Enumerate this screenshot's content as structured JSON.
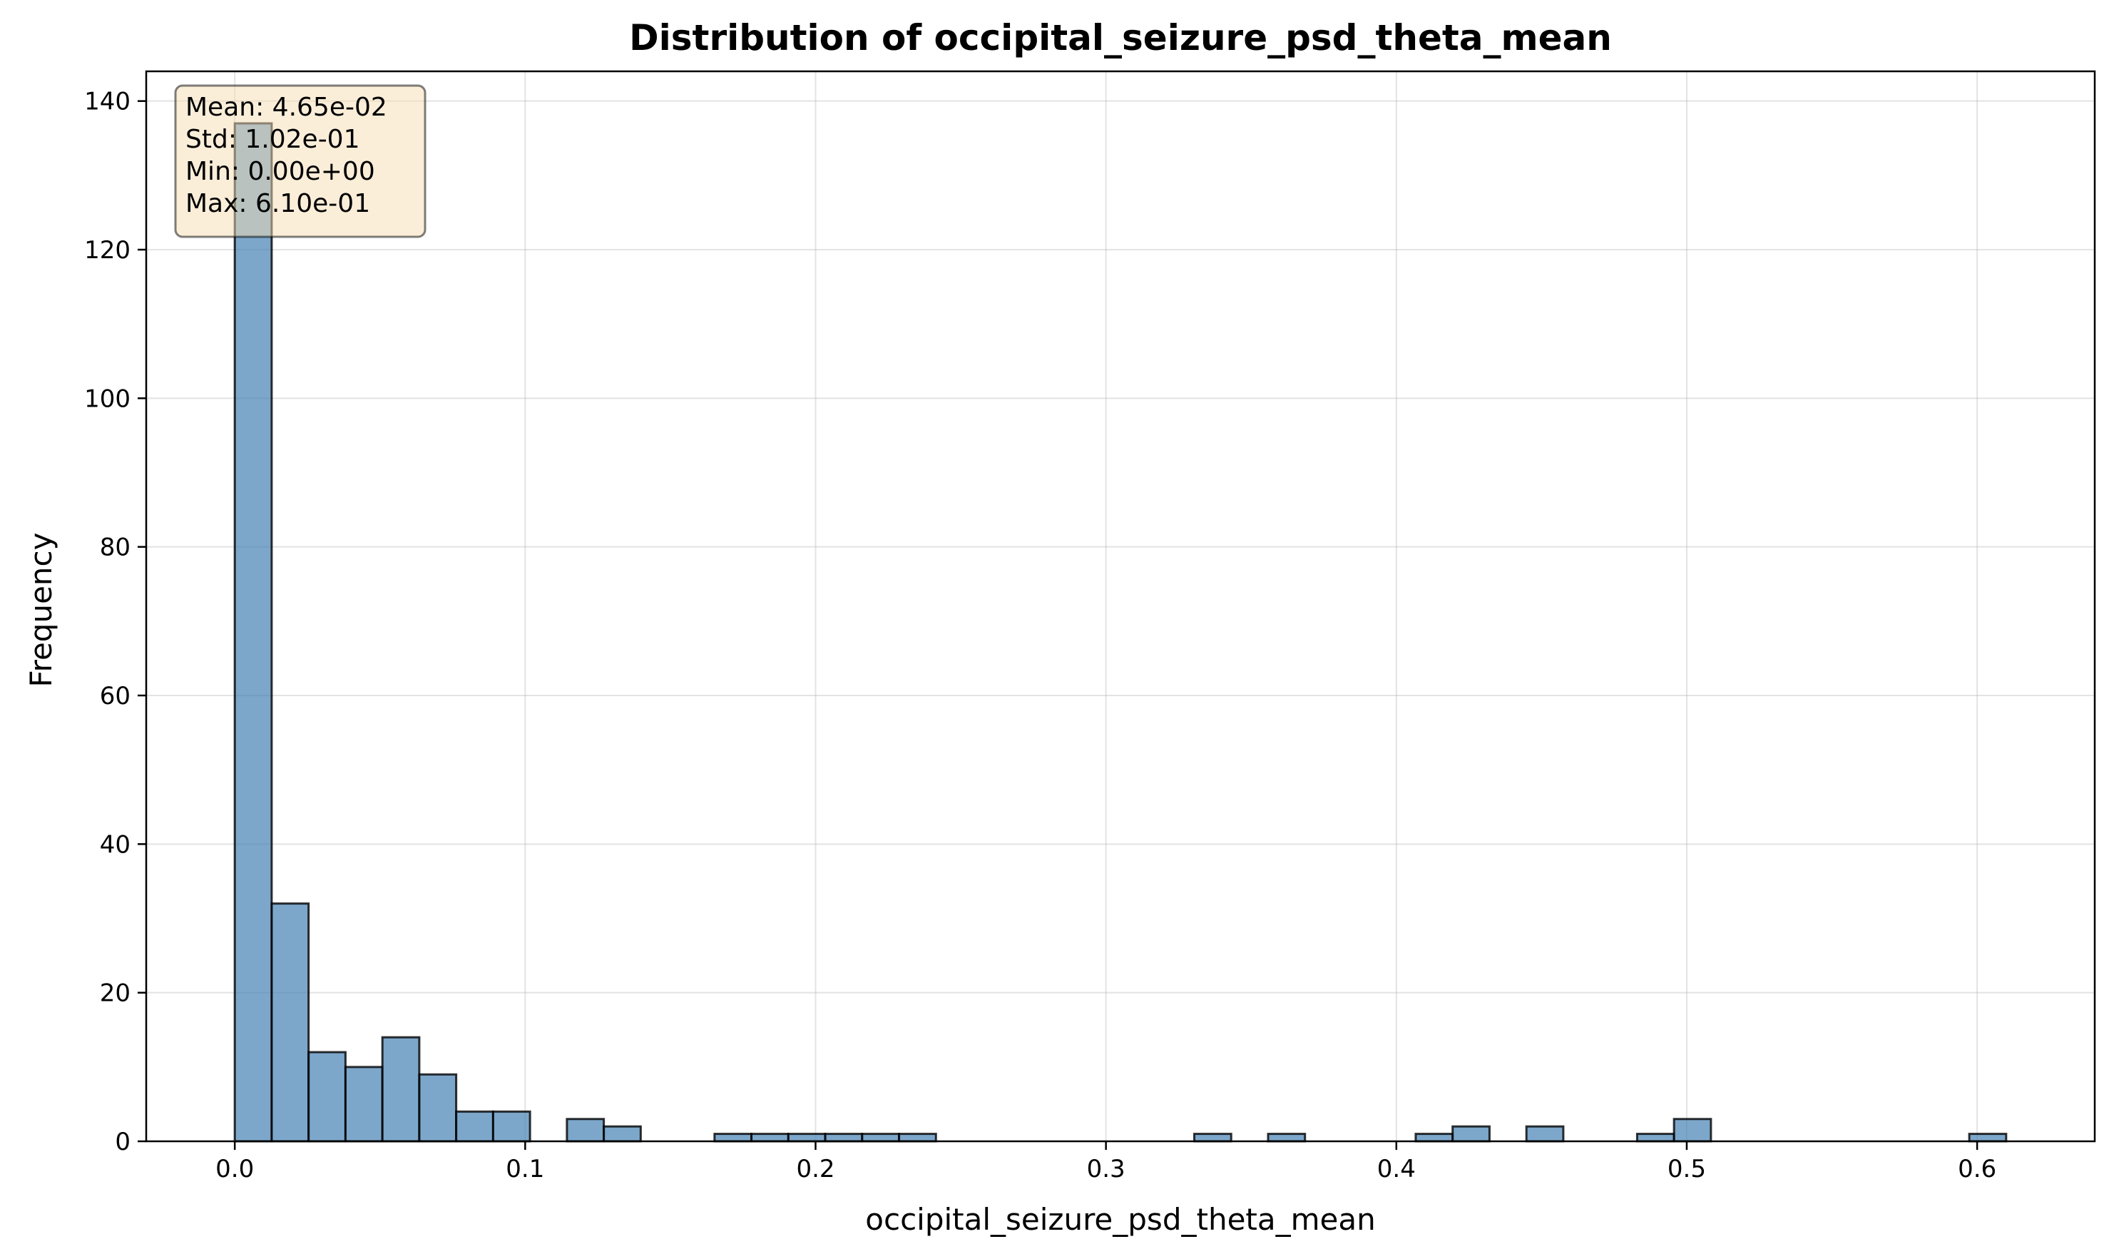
{
  "chart_data": {
    "type": "bar",
    "title": "Distribution of occipital_seizure_psd_theta_mean",
    "xlabel": "occipital_seizure_psd_theta_mean",
    "ylabel": "Frequency",
    "xlim": [
      -0.0305,
      0.6405
    ],
    "ylim": [
      0,
      144
    ],
    "xticks": [
      0.0,
      0.1,
      0.2,
      0.3,
      0.4,
      0.5,
      0.6
    ],
    "xtick_labels": [
      "0.0",
      "0.1",
      "0.2",
      "0.3",
      "0.4",
      "0.5",
      "0.6"
    ],
    "yticks": [
      0,
      20,
      40,
      60,
      80,
      100,
      120,
      140
    ],
    "ytick_labels": [
      "0",
      "20",
      "40",
      "60",
      "80",
      "100",
      "120",
      "140"
    ],
    "grid": true,
    "bin_range": [
      0.0,
      0.61
    ],
    "bin_count": 48,
    "counts": [
      137,
      32,
      12,
      10,
      14,
      9,
      4,
      4,
      0,
      3,
      2,
      0,
      0,
      1,
      1,
      1,
      1,
      1,
      1,
      0,
      0,
      0,
      0,
      0,
      0,
      0,
      1,
      0,
      1,
      0,
      0,
      0,
      1,
      2,
      0,
      2,
      0,
      0,
      1,
      3,
      0,
      0,
      0,
      0,
      0,
      0,
      0,
      1
    ],
    "bar_color": "#4682b4",
    "stats_box": {
      "lines": [
        "Mean: 4.65e-02",
        "Std: 1.02e-01",
        "Min: 0.00e+00",
        "Max: 6.10e-01"
      ],
      "placement": "top-left",
      "background": "#f5deb3"
    }
  }
}
